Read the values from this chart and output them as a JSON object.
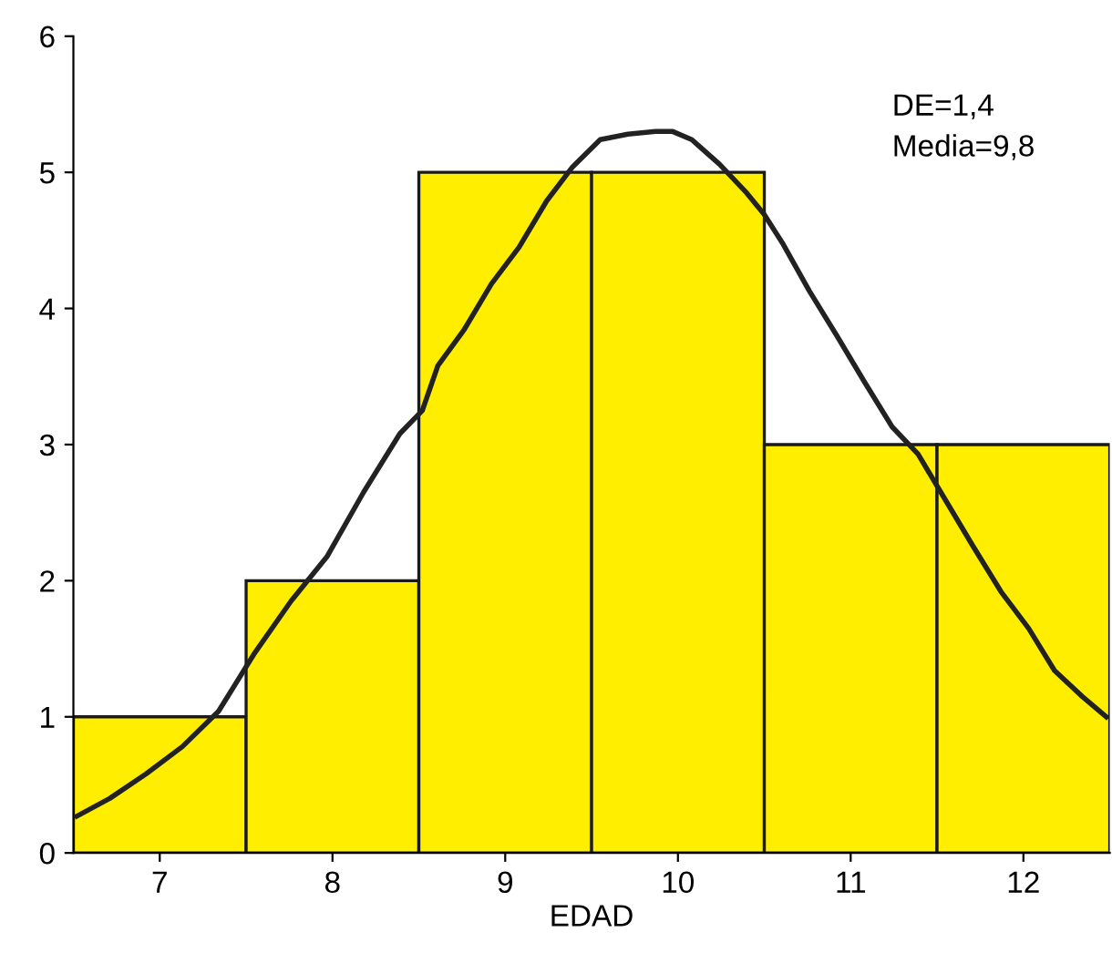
{
  "chart_data": {
    "type": "histogram",
    "xlabel": "EDAD",
    "series": [
      {
        "bins": [
          6.5,
          7.5,
          8.5,
          9.5,
          10.5,
          11.5,
          12.5
        ],
        "values": [
          1,
          2,
          5,
          5,
          3,
          3
        ],
        "color": "#ffee00"
      },
      {
        "type": "line",
        "color": "#222222",
        "x": [
          6.52,
          6.71,
          6.92,
          7.13,
          7.34,
          7.55,
          7.76,
          7.97,
          8.18,
          8.39,
          8.52,
          8.61,
          8.76,
          8.92,
          9.08,
          9.24,
          9.39,
          9.55,
          9.71,
          9.87,
          9.97,
          10.08,
          10.24,
          10.39,
          10.5,
          10.61,
          10.76,
          10.92,
          11.08,
          11.24,
          11.39,
          11.55,
          11.71,
          11.87,
          12.03,
          12.18,
          12.34,
          12.48
        ],
        "values": [
          0.27,
          0.4,
          0.58,
          0.78,
          1.04,
          1.47,
          1.85,
          2.18,
          2.65,
          3.08,
          3.25,
          3.58,
          3.84,
          4.18,
          4.45,
          4.79,
          5.04,
          5.24,
          5.28,
          5.3,
          5.3,
          5.24,
          5.06,
          4.86,
          4.69,
          4.47,
          4.13,
          3.8,
          3.46,
          3.13,
          2.93,
          2.59,
          2.25,
          1.92,
          1.65,
          1.34,
          1.15,
          1.0
        ]
      }
    ],
    "annotations": [
      "DE=1,4",
      "Media=9,8"
    ],
    "xlim": [
      6.5,
      12.5
    ],
    "xticks": [
      7,
      8,
      9,
      10,
      11,
      12
    ],
    "ylim": [
      0,
      6
    ],
    "yticks": [
      0,
      1,
      2,
      3,
      4,
      5,
      6
    ],
    "grid": false,
    "legend": false
  }
}
